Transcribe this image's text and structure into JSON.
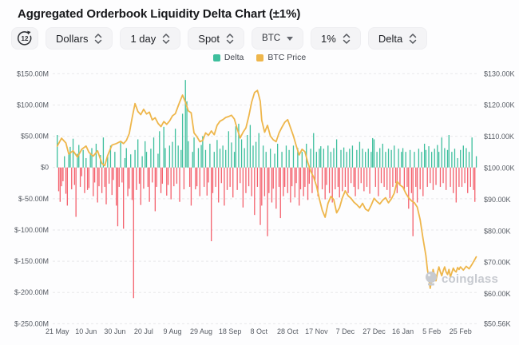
{
  "header": {
    "title": "Aggregated Orderbook Liquidity Delta Chart (±1%)"
  },
  "toolbar": {
    "time_icon_label": "12",
    "dropdowns": [
      {
        "label": "Dollars"
      },
      {
        "label": "1 day"
      },
      {
        "label": "Spot"
      },
      {
        "label": "BTC"
      },
      {
        "label": "1%"
      },
      {
        "label": "Delta"
      }
    ]
  },
  "legend": [
    {
      "label": "Delta",
      "color": "#3ebf9d"
    },
    {
      "label": "BTC Price",
      "color": "#eeb64b"
    }
  ],
  "watermark": "coinglass",
  "chart_data": {
    "type": "bar+line",
    "title": "Aggregated Orderbook Liquidity Delta Chart (±1%)",
    "grid": "dashed horizontal",
    "legend_position": "top-center",
    "x_axis": {
      "tick_labels": [
        "21 May",
        "10 Jun",
        "30 Jun",
        "20 Jul",
        "9 Aug",
        "29 Aug",
        "18 Sep",
        "8 Oct",
        "28 Oct",
        "17 Nov",
        "7 Dec",
        "27 Dec",
        "16 Jan",
        "5 Feb",
        "25 Feb"
      ],
      "tick_day_indices": [
        0,
        20,
        40,
        60,
        80,
        100,
        120,
        140,
        160,
        180,
        200,
        220,
        240,
        260,
        280
      ],
      "days_total": 292
    },
    "y_axis_left": {
      "unit": "USD (millions)",
      "tick_labels": [
        "$150.00M",
        "$100.00M",
        "$50.00M",
        "$0",
        "$-50.00M",
        "$-100.00M",
        "$-150.00M",
        "$-200.00M",
        "$-250.00M"
      ],
      "tick_values": [
        150,
        100,
        50,
        0,
        -50,
        -100,
        -150,
        -200,
        -250
      ],
      "range": [
        -250,
        150
      ]
    },
    "y_axis_right": {
      "unit": "USD (thousands)",
      "tick_labels": [
        "$130.00K",
        "$120.00K",
        "$110.00K",
        "$100.00K",
        "$90.00K",
        "$80.00K",
        "$70.00K",
        "$60.00K",
        "$50.56K"
      ],
      "tick_values": [
        130,
        120,
        110,
        100,
        90,
        80,
        70,
        60,
        50.56
      ],
      "range": [
        50.56,
        130
      ]
    },
    "series": [
      {
        "name": "Delta",
        "type": "bar",
        "axis": "left",
        "unit": "USD millions (daily)",
        "color_positive": "#3ebf9d",
        "color_negative": "#f4606c",
        "values": [
          52,
          -38,
          -55,
          -30,
          -22,
          18,
          -42,
          -61,
          24,
          33,
          -35,
          46,
          -28,
          -79,
          22,
          36,
          -31,
          -14,
          28,
          -41,
          15,
          -36,
          -33,
          22,
          31,
          -46,
          -24,
          38,
          -56,
          -30,
          20,
          -41,
          48,
          -31,
          -59,
          18,
          -26,
          35,
          -44,
          -20,
          25,
          -61,
          -94,
          -31,
          40,
          -24,
          -98,
          15,
          31,
          -46,
          -34,
          21,
          -52,
          -209,
          28,
          -36,
          45,
          -26,
          -60,
          18,
          -34,
          42,
          25,
          -31,
          -55,
          30,
          -24,
          48,
          -70,
          -31,
          22,
          58,
          -41,
          -26,
          65,
          31,
          -45,
          -28,
          35,
          -51,
          41,
          -30,
          62,
          -26,
          35,
          -55,
          28,
          86,
          -35,
          140,
          106,
          42,
          -31,
          -61,
          25,
          48,
          -35,
          -30,
          31,
          -46,
          36,
          50,
          -31,
          28,
          -45,
          -24,
          38,
          -118,
          -41,
          25,
          -31,
          44,
          -56,
          30,
          -25,
          35,
          -61,
          28,
          -36,
          58,
          -31,
          40,
          -48,
          25,
          66,
          -36,
          70,
          -25,
          45,
          -64,
          31,
          -41,
          52,
          -30,
          68,
          -46,
          35,
          -76,
          41,
          -31,
          55,
          -92,
          -61,
          35,
          -46,
          25,
          -110,
          -41,
          30,
          -56,
          -34,
          22,
          -66,
          38,
          -31,
          -81,
          25,
          -46,
          -31,
          35,
          -41,
          28,
          -56,
          -30,
          35,
          -48,
          -25,
          31,
          -61,
          -35,
          25,
          -46,
          -31,
          38,
          -52,
          -26,
          30,
          -41,
          55,
          -20,
          25,
          -46,
          30,
          34,
          -35,
          30,
          -51,
          -28,
          35,
          -41,
          25,
          -56,
          31,
          -35,
          45,
          -31,
          -48,
          28,
          -38,
          32,
          -31,
          25,
          -41,
          30,
          -25,
          35,
          -31,
          -46,
          28,
          -35,
          41,
          -25,
          30,
          -38,
          25,
          -31,
          30,
          -42,
          25,
          47,
          45,
          -31,
          25,
          -46,
          31,
          -25,
          38,
          -31,
          25,
          -36,
          30,
          -49,
          28,
          -31,
          35,
          -25,
          -41,
          30,
          -28,
          25,
          31,
          -36,
          25,
          -31,
          -66,
          28,
          -41,
          -110,
          25,
          -31,
          -56,
          30,
          -35,
          25,
          -46,
          38,
          28,
          -31,
          34,
          -25,
          25,
          -36,
          30,
          -28,
          36,
          25,
          -31,
          48,
          -25,
          31,
          -36,
          28,
          52,
          -31,
          25,
          -41,
          30,
          -56,
          15,
          -31,
          28,
          -31,
          35,
          -25,
          31,
          -41,
          25,
          -31,
          48,
          -36,
          -55,
          18
        ]
      },
      {
        "name": "BTC Price",
        "type": "line",
        "axis": "right",
        "unit": "USD thousands",
        "color": "#eeb64b",
        "points": [
          [
            0,
            107
          ],
          [
            3,
            109.5
          ],
          [
            6,
            108
          ],
          [
            8,
            104.5
          ],
          [
            11,
            105.5
          ],
          [
            14,
            103.5
          ],
          [
            17,
            106
          ],
          [
            20,
            107
          ],
          [
            22,
            105
          ],
          [
            25,
            103.8
          ],
          [
            28,
            105.5
          ],
          [
            31,
            101.5
          ],
          [
            33,
            100.8
          ],
          [
            35,
            104
          ],
          [
            38,
            107.3
          ],
          [
            41,
            107.8
          ],
          [
            44,
            108.5
          ],
          [
            46,
            107.8
          ],
          [
            48,
            108.8
          ],
          [
            50,
            111
          ],
          [
            52,
            116
          ],
          [
            54,
            120.5
          ],
          [
            56,
            118
          ],
          [
            58,
            117
          ],
          [
            60,
            118.7
          ],
          [
            62,
            117.2
          ],
          [
            64,
            117.8
          ],
          [
            66,
            115.3
          ],
          [
            68,
            116
          ],
          [
            70,
            114.2
          ],
          [
            72,
            113.2
          ],
          [
            74,
            114.8
          ],
          [
            76,
            113.9
          ],
          [
            78,
            115
          ],
          [
            80,
            116.6
          ],
          [
            82,
            117.3
          ],
          [
            85,
            121
          ],
          [
            87,
            123.2
          ],
          [
            89,
            121
          ],
          [
            91,
            118.2
          ],
          [
            93,
            117.6
          ],
          [
            95,
            111.2
          ],
          [
            97,
            110
          ],
          [
            99,
            108.4
          ],
          [
            101,
            108.8
          ],
          [
            103,
            111.2
          ],
          [
            105,
            110.4
          ],
          [
            107,
            111.8
          ],
          [
            109,
            110.6
          ],
          [
            111,
            113.6
          ],
          [
            113,
            114.9
          ],
          [
            115,
            115.4
          ],
          [
            117,
            116.1
          ],
          [
            119,
            116.4
          ],
          [
            121,
            116.8
          ],
          [
            123,
            115.6
          ],
          [
            125,
            112.4
          ],
          [
            127,
            109.6
          ],
          [
            129,
            111.4
          ],
          [
            131,
            112.8
          ],
          [
            133,
            116.5
          ],
          [
            135,
            121
          ],
          [
            137,
            124
          ],
          [
            139,
            124.7
          ],
          [
            140,
            123
          ],
          [
            141,
            121.2
          ],
          [
            142,
            115.2
          ],
          [
            144,
            111.4
          ],
          [
            146,
            113.6
          ],
          [
            148,
            110.2
          ],
          [
            150,
            109
          ],
          [
            152,
            108.4
          ],
          [
            154,
            111.2
          ],
          [
            156,
            113
          ],
          [
            158,
            114.6
          ],
          [
            160,
            115.4
          ],
          [
            162,
            112.8
          ],
          [
            164,
            110.2
          ],
          [
            166,
            107
          ],
          [
            168,
            104.2
          ],
          [
            170,
            106
          ],
          [
            172,
            105.2
          ],
          [
            174,
            101.8
          ],
          [
            176,
            99
          ],
          [
            178,
            97.2
          ],
          [
            180,
            94.4
          ],
          [
            182,
            90.2
          ],
          [
            184,
            86.6
          ],
          [
            186,
            84.4
          ],
          [
            188,
            88.8
          ],
          [
            190,
            91
          ],
          [
            192,
            90
          ],
          [
            194,
            85.8
          ],
          [
            196,
            87.4
          ],
          [
            198,
            90.6
          ],
          [
            200,
            92.8
          ],
          [
            202,
            91.2
          ],
          [
            204,
            90.4
          ],
          [
            206,
            89.2
          ],
          [
            208,
            88.4
          ],
          [
            210,
            87.4
          ],
          [
            212,
            88.8
          ],
          [
            214,
            87
          ],
          [
            216,
            86.4
          ],
          [
            218,
            88.2
          ],
          [
            220,
            90.4
          ],
          [
            222,
            89.4
          ],
          [
            224,
            88.6
          ],
          [
            226,
            89.8
          ],
          [
            228,
            90.6
          ],
          [
            230,
            89
          ],
          [
            232,
            90.2
          ],
          [
            234,
            92
          ],
          [
            236,
            95.8
          ],
          [
            238,
            94.6
          ],
          [
            240,
            94
          ],
          [
            242,
            92
          ],
          [
            244,
            90.6
          ],
          [
            246,
            89.6
          ],
          [
            248,
            89
          ],
          [
            250,
            87.6
          ],
          [
            252,
            83.6
          ],
          [
            254,
            77.6
          ],
          [
            256,
            72.2
          ],
          [
            257,
            68
          ],
          [
            258,
            65
          ],
          [
            259,
            61.8
          ],
          [
            260,
            64.5
          ],
          [
            261,
            67.8
          ],
          [
            262,
            66
          ],
          [
            263,
            64.2
          ],
          [
            264,
            66.8
          ],
          [
            265,
            68.6
          ],
          [
            266,
            67
          ],
          [
            267,
            65.8
          ],
          [
            268,
            67.4
          ],
          [
            269,
            68.6
          ],
          [
            270,
            67
          ],
          [
            271,
            66.2
          ],
          [
            272,
            67.8
          ],
          [
            273,
            65.4
          ],
          [
            274,
            66.8
          ],
          [
            275,
            68.2
          ],
          [
            276,
            67.4
          ],
          [
            277,
            67
          ],
          [
            278,
            68.4
          ],
          [
            279,
            67.8
          ],
          [
            280,
            68.6
          ],
          [
            282,
            67.6
          ],
          [
            284,
            68.8
          ],
          [
            286,
            68
          ],
          [
            288,
            69.4
          ],
          [
            290,
            71
          ],
          [
            291,
            71.8
          ]
        ]
      }
    ]
  }
}
